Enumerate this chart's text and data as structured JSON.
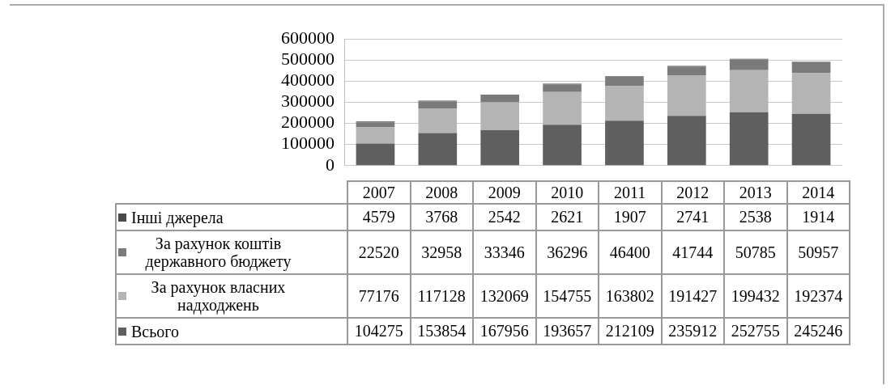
{
  "chart_data": {
    "type": "bar",
    "stacked": true,
    "categories": [
      "2007",
      "2008",
      "2009",
      "2010",
      "2011",
      "2012",
      "2013",
      "2014"
    ],
    "series": [
      {
        "name": "Всього",
        "color": "#5f5f5f",
        "values": [
          104275,
          153854,
          167956,
          193657,
          212109,
          235912,
          252755,
          245246
        ]
      },
      {
        "name": "За рахунок власних надходжень",
        "color": "#b4b4b4",
        "values": [
          77176,
          117128,
          132069,
          154755,
          163802,
          191427,
          199432,
          192374
        ]
      },
      {
        "name": "За рахунок коштів державного бюджету",
        "color": "#7a7a7a",
        "values": [
          22520,
          32958,
          33346,
          36296,
          46400,
          41744,
          50785,
          50957
        ]
      },
      {
        "name": "Інші джерела",
        "color": "#4a4a4a",
        "values": [
          4579,
          3768,
          2542,
          2621,
          1907,
          2741,
          2538,
          1914
        ]
      }
    ],
    "ylim": [
      0,
      600000
    ],
    "yticks": [
      0,
      100000,
      200000,
      300000,
      400000,
      500000,
      600000
    ],
    "grid": "y",
    "data_labels": true,
    "legend": "bottom left"
  }
}
